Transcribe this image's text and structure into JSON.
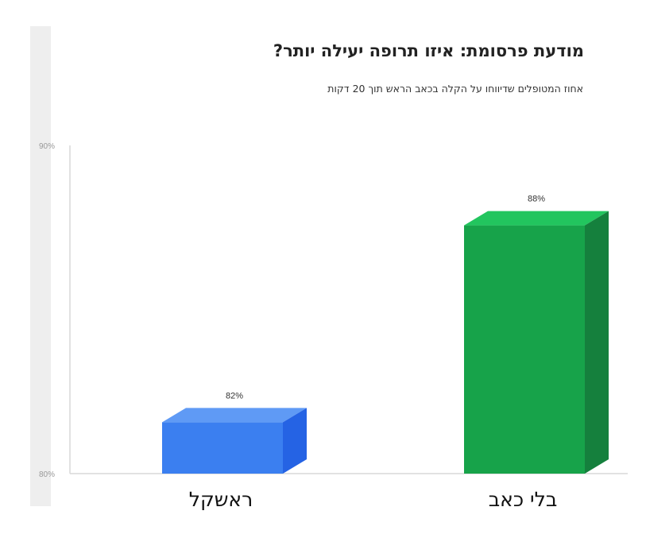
{
  "colors": {
    "blue_front": "#3b7ff0",
    "blue_top": "#5f9af5",
    "blue_side": "#2563e4",
    "green_front": "#17a34a",
    "green_top": "#22c55e",
    "green_side": "#15803d",
    "axis": "#d9d9d9"
  },
  "chart_data": {
    "type": "bar",
    "title": "מודעת פרסומת: איזו תרופה יעילה יותר?",
    "subtitle": "אחוז המטופלים שדיווחו על הקלה בכאב הראש תוך 20 דקות",
    "categories": [
      "ראשקל",
      "בלי כאב"
    ],
    "values": [
      82,
      88
    ],
    "data_labels": [
      "82%",
      "88%"
    ],
    "ylim": [
      80,
      90
    ],
    "yticks": [
      {
        "value": 80,
        "label": "80%"
      },
      {
        "value": 90,
        "label": "90%"
      }
    ],
    "style": "3d",
    "grid": false,
    "legend": "none"
  }
}
